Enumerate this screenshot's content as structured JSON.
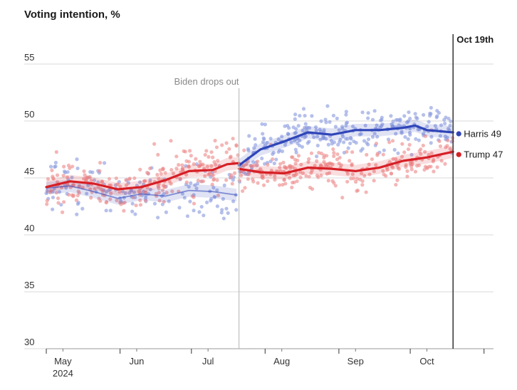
{
  "chart_data": {
    "type": "scatter",
    "title": "Voting intention, %",
    "ylim": [
      30,
      55
    ],
    "y_ticks": [
      30,
      35,
      40,
      45,
      50,
      55
    ],
    "x_range_days": [
      0,
      188
    ],
    "x_tick_labels": [
      {
        "day": 7,
        "label": "May",
        "sub": "2024"
      },
      {
        "day": 38,
        "label": "Jun"
      },
      {
        "day": 68,
        "label": "Jul"
      },
      {
        "day": 99,
        "label": "Aug"
      },
      {
        "day": 130,
        "label": "Sep"
      },
      {
        "day": 160,
        "label": "Oct"
      }
    ],
    "annotations": [
      {
        "day": 81,
        "label": "Biden drops out"
      },
      {
        "day": 171,
        "label": "Oct 19th"
      }
    ],
    "series": [
      {
        "name": "Harris",
        "end_label": "Harris 49",
        "color": "#2f45b8",
        "dot_color": "#8f9ee0",
        "trend_segments": [
          [
            [
              0,
              44.1
            ],
            [
              10,
              44.3
            ],
            [
              20,
              43.8
            ],
            [
              30,
              43.2
            ],
            [
              40,
              43.6
            ],
            [
              50,
              43.4
            ],
            [
              60,
              43.9
            ],
            [
              70,
              43.8
            ],
            [
              80,
              43.5
            ]
          ],
          [
            [
              81,
              46.1
            ],
            [
              90,
              47.5
            ],
            [
              100,
              48.2
            ],
            [
              110,
              49
            ],
            [
              120,
              48.8
            ],
            [
              130,
              49.2
            ],
            [
              140,
              49.2
            ],
            [
              150,
              49.4
            ],
            [
              155,
              49.6
            ],
            [
              160,
              49.2
            ],
            [
              171,
              49
            ]
          ]
        ]
      },
      {
        "name": "Trump",
        "end_label": "Trump 47",
        "color": "#d61f26",
        "dot_color": "#ee8f8f",
        "trend_segments": [
          [
            [
              0,
              44.2
            ],
            [
              10,
              44.7
            ],
            [
              20,
              44.5
            ],
            [
              30,
              44
            ],
            [
              40,
              44.2
            ],
            [
              50,
              44.8
            ],
            [
              60,
              45.6
            ],
            [
              70,
              45.7
            ],
            [
              76,
              46.2
            ],
            [
              81,
              46.3
            ]
          ],
          [
            [
              81,
              45.8
            ],
            [
              90,
              45.5
            ],
            [
              100,
              45.4
            ],
            [
              110,
              45.9
            ],
            [
              120,
              45.8
            ],
            [
              130,
              45.6
            ],
            [
              140,
              45.9
            ],
            [
              150,
              46.5
            ],
            [
              160,
              46.8
            ],
            [
              171,
              47.3
            ]
          ]
        ]
      }
    ]
  }
}
